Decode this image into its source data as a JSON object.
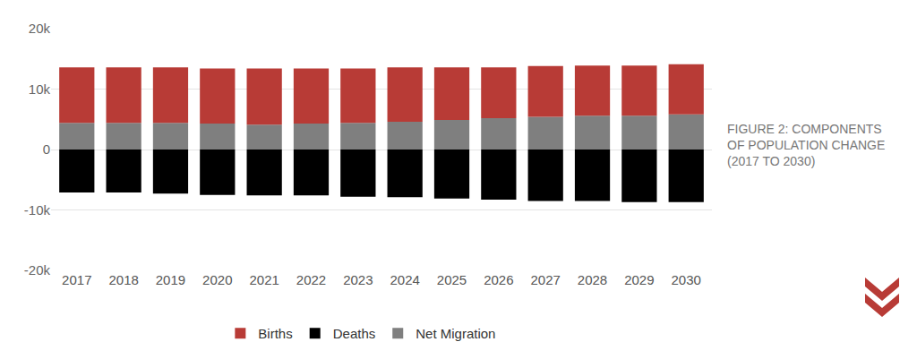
{
  "chart_data": {
    "type": "bar",
    "title": "FIGURE 2: COMPONENTS OF POPULATION CHANGE (2017 TO 2030)",
    "categories": [
      "2017",
      "2018",
      "2019",
      "2020",
      "2021",
      "2022",
      "2023",
      "2024",
      "2025",
      "2026",
      "2027",
      "2028",
      "2029",
      "2030"
    ],
    "series": [
      {
        "name": "Births",
        "color": "#b83b36",
        "values": [
          9200,
          9200,
          9200,
          9100,
          9300,
          9100,
          9000,
          9000,
          8700,
          8400,
          8400,
          8300,
          8300,
          8300
        ]
      },
      {
        "name": "Deaths",
        "color": "#000000",
        "values": [
          -7100,
          -7100,
          -7300,
          -7500,
          -7600,
          -7600,
          -7800,
          -7900,
          -8100,
          -8300,
          -8500,
          -8500,
          -8700,
          -8700
        ]
      },
      {
        "name": "Net Migration",
        "color": "#7f7f7f",
        "values": [
          4400,
          4400,
          4400,
          4300,
          4100,
          4300,
          4400,
          4600,
          4900,
          5200,
          5400,
          5600,
          5600,
          5800
        ]
      }
    ],
    "stacked": true,
    "ylim": [
      -20000,
      20000
    ],
    "yticks": [
      {
        "value": -20000,
        "label": "-20k"
      },
      {
        "value": -10000,
        "label": "-10k"
      },
      0,
      {
        "value": 10000,
        "label": "10k"
      },
      {
        "value": 20000,
        "label": "20k"
      }
    ],
    "grid": true,
    "legend": "bottom"
  }
}
